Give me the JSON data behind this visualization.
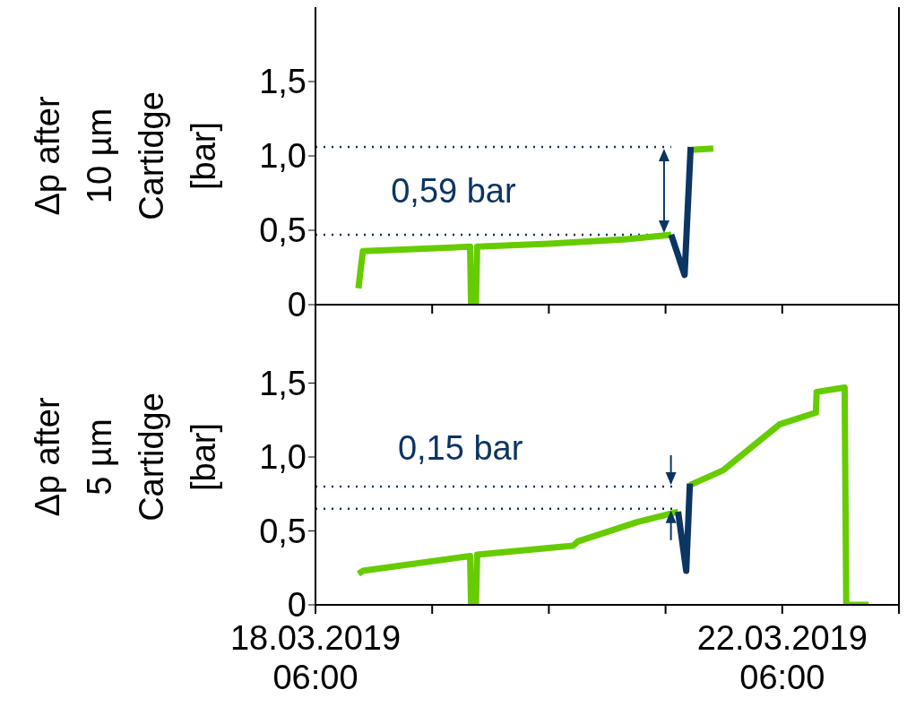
{
  "chart_data": [
    {
      "type": "line",
      "ylabel": "Δp after 10 µm Cartidge [bar]",
      "ylim": [
        0,
        2
      ],
      "yticks": [
        0,
        {
          "value": 0.5,
          "label": "0,5"
        },
        {
          "value": 1,
          "label": "1,0"
        },
        {
          "value": 1.5,
          "label": "1,5"
        }
      ],
      "xlim": [
        "2019-03-18T06:00",
        "2019-03-23T06:00"
      ],
      "xticks": [
        {
          "value": "2019-03-18T06:00",
          "label": null
        },
        {
          "value": "2019-03-19T06:00",
          "label": null
        },
        {
          "value": "2019-03-20T06:00",
          "label": null
        },
        {
          "value": "2019-03-21T06:00",
          "label": null
        },
        {
          "value": "2019-03-22T06:00",
          "label": null
        },
        {
          "value": "2019-03-23T06:00",
          "label": null
        }
      ],
      "tick_labels": "y",
      "grid": false,
      "legend": false,
      "series": [
        {
          "color": "#66cc00",
          "x": [
            "2019-03-18T14:50",
            "2019-03-18T15:45",
            "2019-03-19T00:00",
            "2019-03-19T13:48",
            "2019-03-19T14:00",
            "2019-03-19T15:00",
            "2019-03-19T15:15",
            "2019-03-20T06:00",
            "2019-03-20T22:00",
            "2019-03-21T07:10",
            "2019-03-21T09:00",
            "2019-03-21T11:10",
            "2019-03-21T15:50"
          ],
          "values": [
            0.11,
            0.36,
            0.37,
            0.39,
            0,
            0,
            0.39,
            0.41,
            0.44,
            0.47,
            null,
            1.04,
            1.05
          ]
        },
        {
          "color": "#0b3563",
          "x": [
            "2019-03-21T07:10",
            "2019-03-21T09:55",
            "2019-03-21T11:10"
          ],
          "values": [
            0.47,
            0.2,
            1.06
          ]
        }
      ],
      "ref_lines": [
        {
          "axis": "y",
          "value": 1.06,
          "color": "#0b3563",
          "line_style": "dotted"
        },
        {
          "axis": "y",
          "value": 0.47,
          "color": "#0b3563",
          "line_style": "dotted"
        }
      ],
      "annotations": [
        "0,59 bar"
      ]
    },
    {
      "type": "line",
      "ylabel": "Δp after 5 µm Cartidge [bar]",
      "ylim": [
        0,
        2
      ],
      "yticks": [
        0,
        {
          "value": 0.5,
          "label": "0,5"
        },
        {
          "value": 1,
          "label": "1,0"
        },
        {
          "value": 1.5,
          "label": "1,5"
        }
      ],
      "xlim": [
        "2019-03-18T06:00",
        "2019-03-23T06:00"
      ],
      "xticks": [
        {
          "value": "2019-03-18T06:00",
          "label": "18.03.2019\n06:00"
        },
        {
          "value": "2019-03-19T06:00",
          "label": null
        },
        {
          "value": "2019-03-20T06:00",
          "label": null
        },
        {
          "value": "2019-03-21T06:00",
          "label": null
        },
        {
          "value": "2019-03-22T06:00",
          "label": "22.03.2019\n06:00"
        },
        {
          "value": "2019-03-23T06:00",
          "label": null
        }
      ],
      "grid": false,
      "legend": false,
      "series": [
        {
          "color": "#66cc00",
          "x": [
            "2019-03-18T14:50",
            "2019-03-18T15:45",
            "2019-03-19T13:48",
            "2019-03-19T14:00",
            "2019-03-19T15:00",
            "2019-03-19T15:15",
            "2019-03-20T06:00",
            "2019-03-20T11:00",
            "2019-03-20T12:00",
            "2019-03-21T00:10",
            "2019-03-21T08:35",
            "2019-03-21T09:55",
            "2019-03-21T11:00",
            "2019-03-21T17:50",
            "2019-03-22T05:25",
            "2019-03-22T12:55",
            "2019-03-22T13:05",
            "2019-03-22T18:50",
            "2019-03-22T19:10",
            "2019-03-22T23:45"
          ],
          "values": [
            0.21,
            0.23,
            0.33,
            0,
            0,
            0.34,
            0.385,
            0.4,
            0.43,
            0.56,
            0.63,
            null,
            0.81,
            0.91,
            1.22,
            1.3,
            1.44,
            1.47,
            0,
            0
          ]
        },
        {
          "color": "#0b3563",
          "x": [
            "2019-03-21T08:35",
            "2019-03-21T10:15",
            "2019-03-21T11:00"
          ],
          "values": [
            0.63,
            0.23,
            0.82
          ]
        }
      ],
      "ref_lines": [
        {
          "axis": "y",
          "value": 0.8,
          "color": "#0b3563",
          "line_style": "dotted"
        },
        {
          "axis": "y",
          "value": 0.65,
          "color": "#0b3563",
          "line_style": "dotted"
        }
      ],
      "annotations": [
        "0,15 bar"
      ]
    }
  ]
}
